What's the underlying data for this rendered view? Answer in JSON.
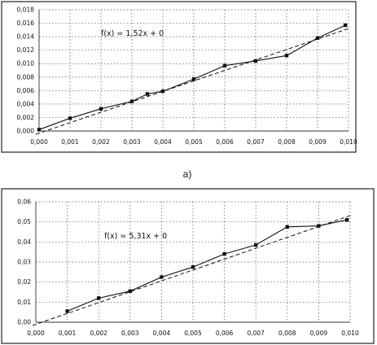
{
  "caption": "a)",
  "chart_data": [
    {
      "type": "scatter",
      "equation": "f(x) = 1,52x + 0",
      "xlim": [
        0,
        0.01
      ],
      "ylim": [
        0,
        0.018
      ],
      "x_ticks": [
        "0,000",
        "0,001",
        "0,002",
        "0,003",
        "0,004",
        "0,005",
        "0,006",
        "0,007",
        "0,008",
        "0,009",
        "0,010"
      ],
      "y_ticks": [
        "0,000",
        "0,002",
        "0,004",
        "0,006",
        "0,008",
        "0,010",
        "0,012",
        "0,014",
        "0,016",
        "0,018"
      ],
      "grid": true,
      "series": [
        {
          "x": [
            0.0,
            0.001,
            0.002,
            0.003,
            0.0035,
            0.004,
            0.005,
            0.006,
            0.007,
            0.008,
            0.009,
            0.0099
          ],
          "y": [
            0.0002,
            0.0019,
            0.0033,
            0.0044,
            0.0055,
            0.0059,
            0.0077,
            0.0097,
            0.0104,
            0.0112,
            0.0138,
            0.0157
          ]
        }
      ],
      "trendline": {
        "slope": 1.52,
        "intercept": 0
      }
    },
    {
      "type": "scatter",
      "equation": "f(x) = 5,31x + 0",
      "xlim": [
        0,
        0.01
      ],
      "ylim": [
        0,
        0.06
      ],
      "x_ticks": [
        "0,000",
        "0,001",
        "0,002",
        "0,003",
        "0,004",
        "0,005",
        "0,006",
        "0,007",
        "0,008",
        "0,009",
        "0,010"
      ],
      "y_ticks": [
        "0,00",
        "0,01",
        "0,02",
        "0,03",
        "0,04",
        "0,05",
        "0,06"
      ],
      "grid": true,
      "series": [
        {
          "x": [
            0.001,
            0.002,
            0.003,
            0.004,
            0.005,
            0.006,
            0.007,
            0.008,
            0.009,
            0.0099
          ],
          "y": [
            0.0055,
            0.012,
            0.0155,
            0.0225,
            0.0275,
            0.034,
            0.0385,
            0.0475,
            0.048,
            0.051
          ]
        }
      ],
      "trendline": {
        "slope": 5.31,
        "intercept": 0
      }
    }
  ]
}
